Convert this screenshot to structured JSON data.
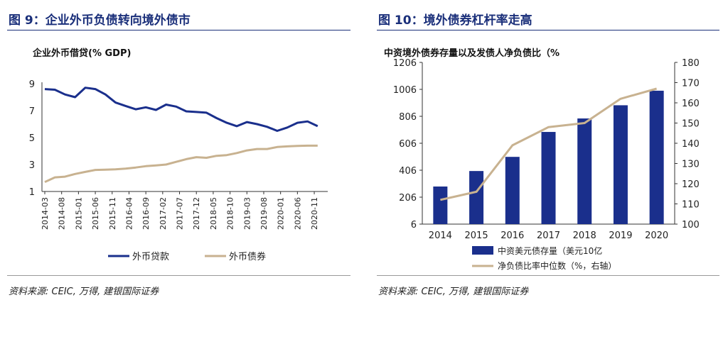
{
  "left": {
    "fig_title": "图 9：企业外币负债转向境外债市",
    "source": "资料来源: CEIC, 万得, 建银国际证券",
    "chart_data": {
      "type": "line",
      "title": "企业外币借贷(% GDP)",
      "xlabel": "",
      "ylabel": "",
      "ylim": [
        1,
        9
      ],
      "yticks": [
        1,
        3,
        5,
        7,
        9
      ],
      "legend_position": "bottom",
      "x_tick_labels": [
        "2014-03",
        "2014-08",
        "2015-01",
        "2015-06",
        "2015-11",
        "2016-04",
        "2016-09",
        "2017-02",
        "2017-07",
        "2017-12",
        "2018-05",
        "2018-10",
        "2019-03",
        "2019-08",
        "2020-01",
        "2020-06",
        "2020-11"
      ],
      "x": [
        "2014-03",
        "2014-06",
        "2014-09",
        "2014-12",
        "2015-03",
        "2015-06",
        "2015-09",
        "2015-12",
        "2016-03",
        "2016-06",
        "2016-09",
        "2016-12",
        "2017-03",
        "2017-06",
        "2017-09",
        "2017-12",
        "2018-03",
        "2018-06",
        "2018-09",
        "2018-12",
        "2019-03",
        "2019-06",
        "2019-09",
        "2019-12",
        "2020-03",
        "2020-06",
        "2020-09",
        "2020-12",
        "2021-03"
      ],
      "series": [
        {
          "name": "外币贷款",
          "color": "#1a2f8c",
          "values": [
            8.6,
            8.55,
            8.2,
            8.0,
            8.7,
            8.6,
            8.2,
            7.6,
            7.35,
            7.1,
            7.25,
            7.05,
            7.45,
            7.3,
            6.95,
            6.9,
            6.85,
            6.45,
            6.1,
            5.85,
            6.15,
            6.0,
            5.8,
            5.5,
            5.75,
            6.1,
            6.2,
            5.85,
            null
          ]
        },
        {
          "name": "外币债券",
          "color": "#c8b290",
          "values": [
            1.7,
            2.05,
            2.1,
            2.3,
            2.45,
            2.6,
            2.62,
            2.65,
            2.7,
            2.78,
            2.88,
            2.93,
            3.0,
            3.2,
            3.4,
            3.55,
            3.5,
            3.65,
            3.7,
            3.85,
            4.05,
            4.15,
            4.15,
            4.3,
            4.35,
            4.38,
            4.4,
            4.4,
            null
          ]
        }
      ]
    }
  },
  "right": {
    "fig_title": "图 10：境外债券杠杆率走高",
    "source": "资料来源: CEIC, 万得, 建银国际证券",
    "chart_data": {
      "type": "bar",
      "title": "中资境外债券存量以及发债人净负债比（%",
      "categories": [
        "2014",
        "2015",
        "2016",
        "2017",
        "2018",
        "2019",
        "2020"
      ],
      "ylim": [
        6,
        1206
      ],
      "yticks": [
        "6",
        "206",
        "406",
        "606",
        "806",
        "1006",
        "1206"
      ],
      "y2lim": [
        100,
        180
      ],
      "y2ticks": [
        "100",
        "110",
        "120",
        "130",
        "140",
        "150",
        "160",
        "170",
        "180"
      ],
      "legend_position": "bottom",
      "series": [
        {
          "name": "中资美元债存量（美元10亿",
          "type": "bar",
          "axis": "left",
          "color": "#1a2f8c",
          "values": [
            285,
            400,
            505,
            690,
            790,
            888,
            996
          ]
        },
        {
          "name": "净负债比率中位数（%，右轴）",
          "type": "line",
          "axis": "right",
          "color": "#c8b290",
          "values": [
            112,
            116,
            139,
            148,
            150,
            162,
            167
          ]
        }
      ]
    }
  }
}
